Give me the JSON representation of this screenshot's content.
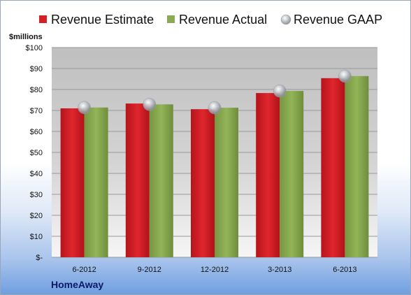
{
  "chart_data": {
    "type": "bar",
    "title": "",
    "company": "HomeAway",
    "unit_label": "$millions",
    "categories": [
      "6-2012",
      "9-2012",
      "12-2012",
      "3-2013",
      "6-2013"
    ],
    "series": [
      {
        "name": "Revenue Estimate",
        "kind": "bar",
        "color": "#d41f26",
        "values": [
          71.0,
          73.3,
          70.6,
          78.3,
          85.4
        ]
      },
      {
        "name": "Revenue Actual",
        "kind": "bar",
        "color": "#8aab4f",
        "values": [
          71.4,
          72.9,
          71.3,
          79.3,
          86.4
        ]
      },
      {
        "name": "Revenue GAAP",
        "kind": "marker",
        "color": "#b0b4ba",
        "values": [
          71.4,
          72.9,
          71.3,
          79.3,
          86.4
        ]
      }
    ],
    "yticks": [
      "$-",
      "$10",
      "$20",
      "$30",
      "$40",
      "$50",
      "$60",
      "$70",
      "$80",
      "$90",
      "$100"
    ],
    "ylim": [
      0,
      100
    ],
    "grid": true,
    "legend_position": "top"
  }
}
